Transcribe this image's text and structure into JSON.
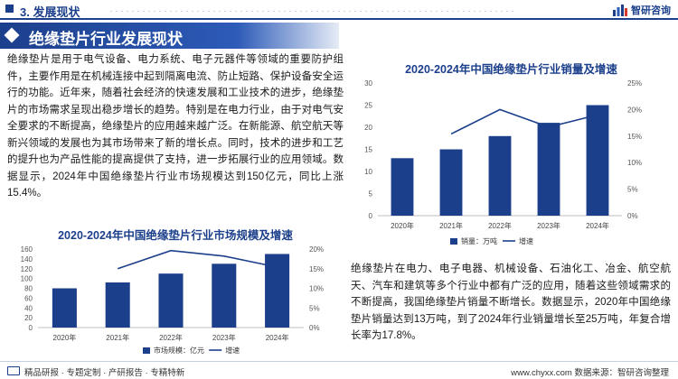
{
  "header": {
    "section_title": "3. 发展现状",
    "logo_text": "智研咨询",
    "banner_title": "绝缘垫片行业发展现状"
  },
  "content": {
    "left_paragraph": "绝缘垫片是用于电气设备、电力系统、电子元器件等领域的重要防护组件，主要作用是在机械连接中起到隔离电流、防止短路、保护设备安全运行的功能。近年来，随着社会经济的快速发展和工业技术的进步，绝缘垫片的市场需求呈现出稳步增长的趋势。特别是在电力行业，由于对电气安全要求的不断提高，绝缘垫片的应用越来越广泛。在新能源、航空航天等新兴领域的发展也为其市场带来了新的增长点。同时，技术的进步和工艺的提升也为产品性能的提高提供了支持，进一步拓展行业的应用领域。数据显示，2024年中国绝缘垫片行业市场规模达到150亿元，同比上涨15.4%。",
    "right_paragraph": "绝缘垫片在电力、电子电器、机械设备、石油化工、冶金、航空航天、汽车和建筑等多个行业中都有广泛的应用，随着这些领域需求的不断提高，我国绝缘垫片销量不断增长。数据显示，2020年中国绝缘垫片销量达到13万吨，到了2024年行业销量增长至25万吨，年复合增长率为17.8%。"
  },
  "footer": {
    "left_text": "精品研报 · 专题定制 · 产研报告 · 专精特新",
    "right_text": "www.chyxx.com    数据来源：智研咨询整理"
  },
  "colors": {
    "brand": "#1c3f8c",
    "bar": "#1c3f8c",
    "line": "#1c3f8c"
  },
  "chart_data": [
    {
      "type": "bar",
      "title": "2020-2024年中国绝缘垫片行业销量及增速",
      "categories": [
        "2020年",
        "2021年",
        "2022年",
        "2023年",
        "2024年"
      ],
      "series": [
        {
          "name": "销量：万吨",
          "kind": "bar",
          "axis": "left",
          "values": [
            13,
            15,
            18,
            21,
            25
          ]
        },
        {
          "name": "增速",
          "kind": "line",
          "axis": "right",
          "values": [
            null,
            15.4,
            20.0,
            16.7,
            19.0
          ]
        }
      ],
      "ylim_left": [
        0,
        30
      ],
      "yticks_left": [
        0,
        5,
        10,
        15,
        20,
        25,
        30
      ],
      "ylim_right": [
        0,
        25
      ],
      "yticks_right": [
        "0%",
        "5%",
        "10%",
        "15%",
        "20%",
        "25%"
      ],
      "legend_position": "bottom"
    },
    {
      "type": "bar",
      "title": "2020-2024年中国绝缘垫片行业市场规模及增速",
      "categories": [
        "2020年",
        "2021年",
        "2022年",
        "2023年",
        "2024年"
      ],
      "series": [
        {
          "name": "市场规模：亿元",
          "kind": "bar",
          "axis": "left",
          "values": [
            80,
            92,
            110,
            130,
            150
          ]
        },
        {
          "name": "增速",
          "kind": "line",
          "axis": "right",
          "values": [
            null,
            15.0,
            19.6,
            18.2,
            15.4
          ]
        }
      ],
      "ylim_left": [
        0,
        160
      ],
      "yticks_left": [
        0,
        20,
        40,
        60,
        80,
        100,
        120,
        140,
        160
      ],
      "ylim_right": [
        0,
        20
      ],
      "yticks_right": [
        "0%",
        "5%",
        "10%",
        "15%",
        "20%"
      ],
      "legend_position": "bottom"
    }
  ]
}
